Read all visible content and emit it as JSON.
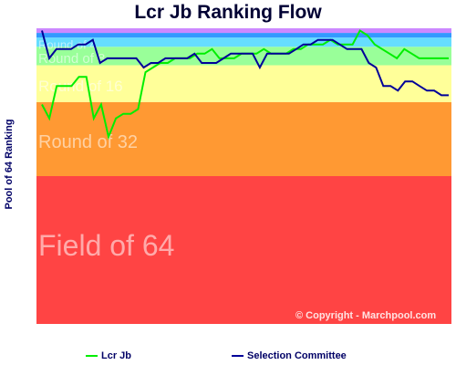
{
  "chart_data": {
    "type": "line",
    "title": "Lcr Jb Ranking Flow",
    "ylabel": "Pool of 64 Ranking",
    "ylim": [
      64,
      1
    ],
    "bands": [
      {
        "label": "Field of 64",
        "from": 33,
        "to": 64,
        "color": "#ff4444"
      },
      {
        "label": "Round of 32",
        "from": 17,
        "to": 32,
        "color": "#ff9933"
      },
      {
        "label": "Round of 16",
        "from": 9,
        "to": 16,
        "color": "#ffff99"
      },
      {
        "label": "Round of 8",
        "from": 5,
        "to": 8,
        "color": "#99ff99"
      },
      {
        "label": "Round of 4",
        "from": 3,
        "to": 4,
        "color": "#66ddff"
      },
      {
        "label": "",
        "from": 2,
        "to": 2,
        "color": "#3399ff"
      },
      {
        "label": "",
        "from": 1,
        "to": 1,
        "color": "#cc88ff"
      }
    ],
    "series": [
      {
        "name": "Lcr Jb",
        "color": "#00ee00",
        "values": [
          17,
          20,
          13,
          13,
          13,
          11,
          11,
          20,
          17,
          24,
          20,
          19,
          19,
          18,
          10,
          9,
          8,
          8,
          7,
          7,
          7,
          6,
          6,
          5,
          7,
          7,
          7,
          6,
          6,
          6,
          5,
          6,
          6,
          6,
          5,
          5,
          4,
          4,
          4,
          3,
          4,
          4,
          4,
          1,
          2,
          4,
          5,
          6,
          7,
          5,
          6,
          7,
          7,
          7,
          7,
          7
        ]
      },
      {
        "name": "Selection Committee",
        "color": "#000099",
        "values": [
          1,
          7,
          5,
          5,
          5,
          4,
          4,
          3,
          8,
          7,
          7,
          7,
          7,
          7,
          9,
          8,
          8,
          7,
          7,
          7,
          7,
          6,
          8,
          8,
          8,
          7,
          6,
          6,
          6,
          6,
          9,
          6,
          6,
          6,
          6,
          5,
          4,
          4,
          3,
          3,
          3,
          4,
          5,
          5,
          5,
          8,
          9,
          13,
          13,
          14,
          12,
          12,
          13,
          14,
          14,
          15,
          15
        ]
      }
    ]
  },
  "copyright": "© Copyright - Marchpool.com"
}
